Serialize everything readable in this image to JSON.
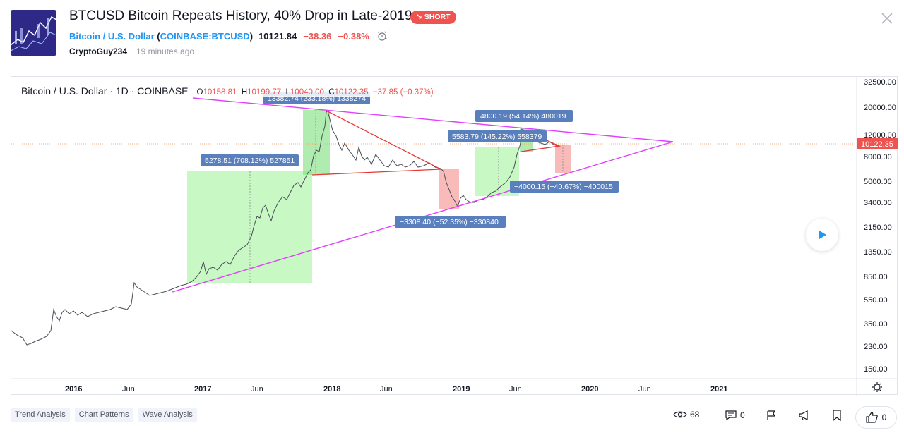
{
  "header": {
    "title": "BTCUSD Bitcoin Repeats History, 40% Drop in Late-2019",
    "badge": "SHORT",
    "symbol_name": "Bitcoin / U.S. Dollar",
    "symbol_code": "COINBASE:BTCUSD",
    "price": "10121.84",
    "change": "−38.36",
    "change_pct": "−0.38%",
    "author": "CryptoGuy234",
    "posted": "19 minutes ago"
  },
  "legend": {
    "name": "Bitcoin / U.S. Dollar · 1D · COINBASE",
    "o_label": "O",
    "o": "10158.81",
    "h_label": "H",
    "h": "10199.77",
    "l_label": "L",
    "l": "10040.00",
    "c_label": "C",
    "c": "10122.35",
    "chg": "−37.85 (−0.37%)"
  },
  "chart_data": {
    "type": "line",
    "scale": "log",
    "price_axis": [
      "32500.00",
      "20000.00",
      "12000.00",
      "8000.00",
      "5000.00",
      "3400.00",
      "2150.00",
      "1350.00",
      "850.00",
      "550.00",
      "350.00",
      "230.00",
      "150.00"
    ],
    "time_axis": [
      "2016",
      "Jun",
      "2017",
      "Jun",
      "2018",
      "Jun",
      "2019",
      "Jun",
      "2020",
      "Jun",
      "2021"
    ],
    "last_price_label": "10122.35",
    "annotations": [
      {
        "text": "13382.74 (233.18%) 1338274"
      },
      {
        "text": "5278.51 (708.12%) 527851"
      },
      {
        "text": "4800.19 (54.14%) 480019"
      },
      {
        "text": "5583.79 (145.22%) 558379"
      },
      {
        "text": "−4000.15 (−40.67%) −400015"
      },
      {
        "text": "−3308.40 (−52.35%) −330840"
      }
    ],
    "colors": {
      "up_box": "#b6f5b0",
      "down_box": "#f7a9a9",
      "trend": "#e040fb",
      "triangle": "#e53935",
      "label_bg": "#5a7fbd"
    }
  },
  "tags": [
    "Trend Analysis",
    "Chart Patterns",
    "Wave Analysis"
  ],
  "stats": {
    "views": "68",
    "comments": "0",
    "likes": "0"
  }
}
